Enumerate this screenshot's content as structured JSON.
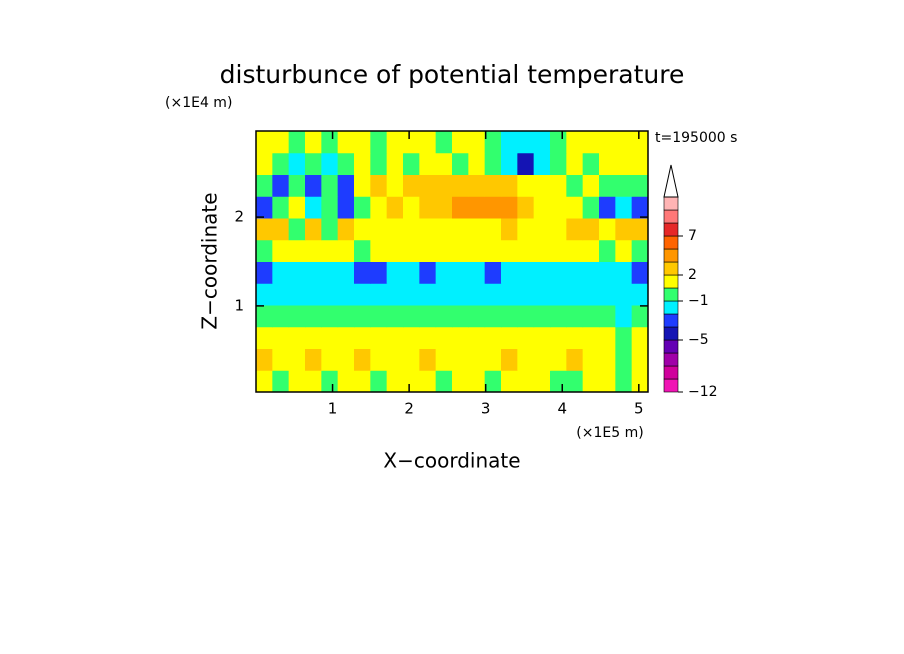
{
  "chart_data": {
    "type": "contourf",
    "title": "disturbunce of potential temperature",
    "x_label": "X−coordinate",
    "y_label": "Z−coordinate",
    "x_unit": "(×1E5 m)",
    "y_unit": "(×1E4 m)",
    "annotation": "t=195000 s",
    "xlim": [
      0,
      5.12
    ],
    "ylim": [
      0.03,
      2.97
    ],
    "xticks": [
      1,
      2,
      3,
      4,
      5
    ],
    "yticks": [
      1,
      2
    ],
    "x": [
      0.107,
      0.32,
      0.533,
      0.747,
      0.96,
      1.173,
      1.387,
      1.6,
      1.813,
      2.027,
      2.24,
      2.453,
      2.667,
      2.88,
      3.093,
      3.307,
      3.52,
      3.733,
      3.947,
      4.16,
      4.373,
      4.587,
      4.8,
      5.013
    ],
    "y": [
      0.15,
      0.4,
      0.64,
      0.89,
      1.13,
      1.38,
      1.62,
      1.87,
      2.11,
      2.36,
      2.6,
      2.85
    ],
    "z": [
      [
        1.5,
        0,
        1.5,
        1.5,
        0,
        1.5,
        1.5,
        0,
        1.5,
        1.5,
        1.5,
        0,
        1.5,
        1.5,
        0,
        1.5,
        1.5,
        1.5,
        0,
        0,
        1.5,
        1.5,
        0,
        1.5
      ],
      [
        2.5,
        1.5,
        1.5,
        2.5,
        1.5,
        1.5,
        2.5,
        1.5,
        1.5,
        1.5,
        2.5,
        1.5,
        1.5,
        1.5,
        1.5,
        2.5,
        1.5,
        1.5,
        1.5,
        2.5,
        1.5,
        1.5,
        0,
        1.5
      ],
      [
        1.5,
        1.5,
        1.5,
        1.5,
        1.5,
        1.5,
        1.5,
        1.5,
        1.5,
        1.5,
        1.5,
        1.5,
        1.5,
        1.5,
        1.5,
        1.5,
        1.5,
        1.5,
        1.5,
        1.5,
        1.5,
        1.5,
        0,
        1.5
      ],
      [
        0,
        0,
        0,
        0,
        0,
        0,
        0,
        0,
        0,
        0,
        0,
        0,
        0,
        0,
        0,
        0,
        0,
        0,
        0,
        0,
        0,
        0,
        -1.5,
        0
      ],
      [
        -1.5,
        -1.5,
        -1.5,
        -1.5,
        -1.5,
        -1.5,
        -1.5,
        -1.5,
        -1.5,
        -1.5,
        -1.5,
        -1.5,
        -1.5,
        -1.5,
        -1.5,
        -1.5,
        -1.5,
        -1.5,
        -1.5,
        -1.5,
        -1.5,
        -1.5,
        -1.5,
        -1.5
      ],
      [
        -3,
        -1.5,
        -1.5,
        -1.5,
        -1.5,
        -1.5,
        -3,
        -3,
        -1.5,
        -1.5,
        -3,
        -1.5,
        -1.5,
        -1.5,
        -3,
        -1.5,
        -1.5,
        -1.5,
        -1.5,
        -1.5,
        -1.5,
        -1.5,
        -1.5,
        -3
      ],
      [
        0,
        1.5,
        1.5,
        1.5,
        1.5,
        1.5,
        0,
        1.5,
        1.5,
        1.5,
        1.5,
        1.5,
        1.5,
        1.5,
        1.5,
        1.5,
        1.5,
        1.5,
        1.5,
        1.5,
        1.5,
        0,
        1.5,
        0
      ],
      [
        2.5,
        2.5,
        0,
        2.5,
        0,
        2.5,
        1.5,
        1.5,
        1.5,
        1.5,
        1.5,
        1.5,
        1.5,
        1.5,
        1.5,
        2.5,
        1.5,
        1.5,
        1.5,
        2.5,
        2.5,
        1.5,
        2.5,
        2.5
      ],
      [
        -3,
        0,
        1.5,
        -1.5,
        0,
        -3,
        0,
        1.5,
        2.5,
        1.5,
        2.5,
        2.5,
        4,
        4,
        4,
        4,
        2.5,
        1.5,
        1.5,
        1.5,
        0,
        -3,
        -1.5,
        -3
      ],
      [
        0,
        -3,
        0,
        -3,
        0,
        -3,
        1.5,
        2.5,
        1.5,
        2.5,
        2.5,
        2.5,
        2.5,
        2.5,
        2.5,
        2.5,
        1.5,
        1.5,
        1.5,
        0,
        1.5,
        0,
        0,
        0
      ],
      [
        1.5,
        0,
        -1.5,
        0,
        -1.5,
        0,
        1.5,
        0,
        1.5,
        0,
        1.5,
        1.5,
        0,
        1.5,
        0,
        -1.5,
        -4.5,
        -1.5,
        0,
        1.5,
        0,
        1.5,
        1.5,
        1.5
      ],
      [
        1.5,
        1.5,
        0,
        1.5,
        0,
        1.5,
        1.5,
        0,
        1.5,
        1.5,
        1.5,
        0,
        1.5,
        1.5,
        0,
        -1.5,
        -1.5,
        -1.5,
        0,
        1.5,
        1.5,
        1.5,
        1.5,
        1.5
      ]
    ],
    "levels": [
      -12,
      -10,
      -8,
      -6,
      -5,
      -4,
      -2,
      -1,
      1,
      2,
      3,
      5,
      7,
      9,
      11,
      13
    ],
    "colors": [
      "#f014b4",
      "#d0009c",
      "#a000a8",
      "#6400b4",
      "#1414b4",
      "#1e3cff",
      "#00f0ff",
      "#32ff6e",
      "#ffff00",
      "#ffc800",
      "#ff9600",
      "#ff6400",
      "#e62828",
      "#ff7878",
      "#ffb4b4"
    ],
    "colorbar_ticks": [
      {
        "value": -12,
        "label": "−12"
      },
      {
        "value": -5,
        "label": "−5"
      },
      {
        "value": -1,
        "label": "−1"
      },
      2,
      7
    ]
  }
}
